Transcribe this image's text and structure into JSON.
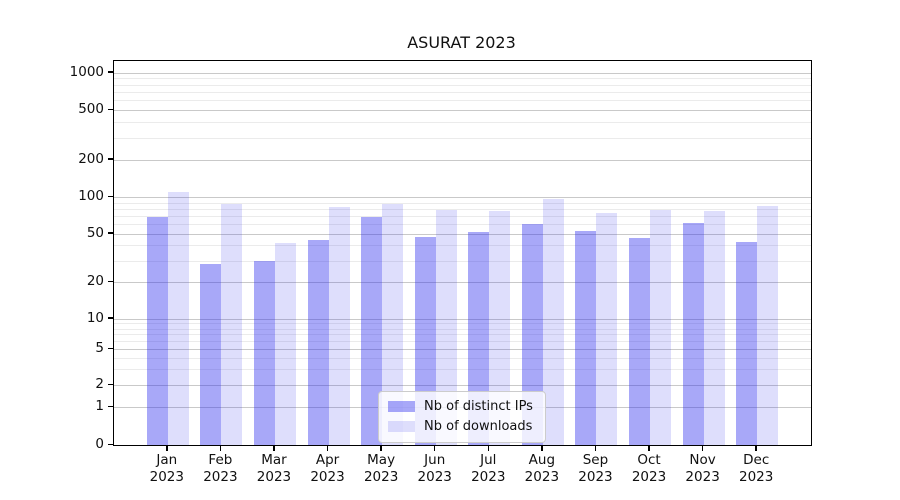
{
  "chart_data": {
    "type": "bar",
    "title": "ASURAT 2023",
    "categories": [
      "Jan 2023",
      "Feb 2023",
      "Mar 2023",
      "Apr 2023",
      "May 2023",
      "Jun 2023",
      "Jul 2023",
      "Aug 2023",
      "Sep 2023",
      "Oct 2023",
      "Nov 2023",
      "Dec 2023"
    ],
    "series": [
      {
        "name": "Nb of distinct IPs",
        "color": "rgba(47,47,239,0.42)",
        "values": [
          68,
          28,
          30,
          44,
          68,
          47,
          52,
          60,
          53,
          46,
          61,
          43
        ]
      },
      {
        "name": "Nb of downloads",
        "color": "rgba(47,47,239,0.16)",
        "values": [
          110,
          87,
          42,
          83,
          88,
          78,
          77,
          96,
          74,
          79,
          77,
          84
        ]
      }
    ],
    "xlabel": "",
    "ylabel": "",
    "yscale": "symlog",
    "yticks": [
      0,
      1,
      2,
      5,
      10,
      20,
      50,
      100,
      200,
      500,
      1000
    ],
    "minor_yticks": [
      3,
      4,
      6,
      7,
      8,
      9,
      30,
      40,
      60,
      70,
      80,
      90,
      300,
      400,
      600,
      700,
      800,
      900
    ],
    "ylim": [
      0,
      1250
    ],
    "grid": true,
    "grid_color_major": "#c9c9c9",
    "grid_color_minor": "#ebebeb",
    "legend_position": "lower-center"
  },
  "legend": {
    "items": [
      {
        "label": "Nb of distinct IPs"
      },
      {
        "label": "Nb of downloads"
      }
    ]
  }
}
